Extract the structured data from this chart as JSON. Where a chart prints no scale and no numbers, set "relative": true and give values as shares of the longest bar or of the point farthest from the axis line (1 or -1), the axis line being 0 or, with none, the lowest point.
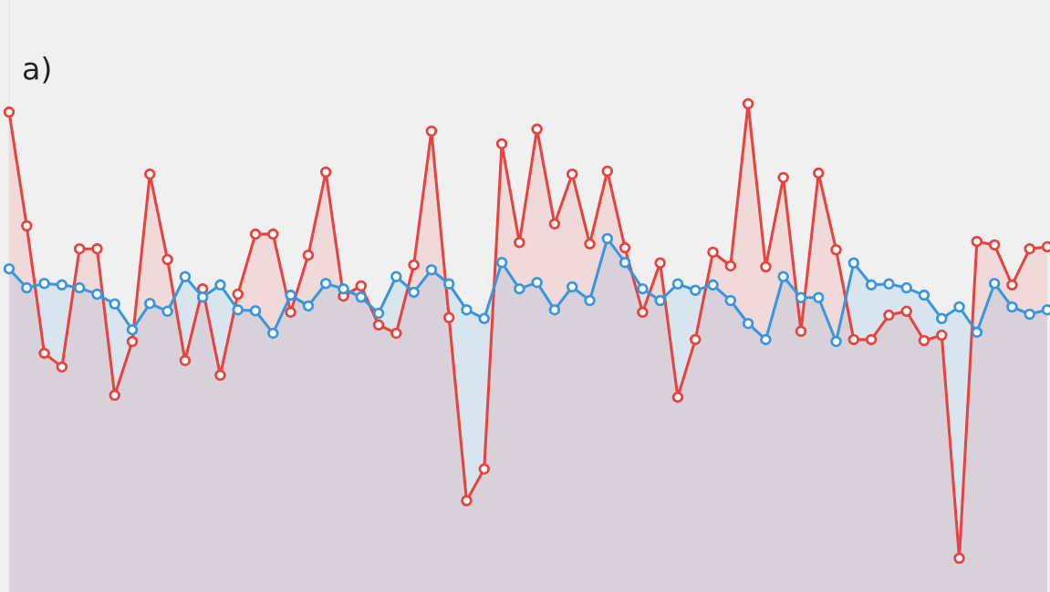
{
  "chart_data": {
    "type": "area",
    "title": "a)",
    "relative": true,
    "marker": "circle",
    "line_style": "solid",
    "categories": [
      null,
      null,
      null,
      null,
      null,
      null,
      null,
      null,
      null,
      null,
      null,
      null,
      null,
      null,
      null,
      null,
      null,
      null,
      null,
      null,
      null,
      null,
      null,
      null,
      null,
      null,
      null,
      null,
      null,
      null,
      null,
      null,
      null,
      null,
      null,
      null,
      null,
      null,
      null,
      null,
      null,
      null,
      null,
      null,
      null,
      null,
      null,
      null,
      null,
      null,
      null,
      null,
      null,
      null,
      null,
      null,
      null,
      null,
      null,
      null
    ],
    "series": [
      {
        "color": "#e8433e",
        "values": [
          0.983,
          0.75,
          0.489,
          0.461,
          0.703,
          0.703,
          0.403,
          0.513,
          0.856,
          0.681,
          0.474,
          0.621,
          0.444,
          0.61,
          0.733,
          0.733,
          0.573,
          0.69,
          0.86,
          0.606,
          0.627,
          0.547,
          0.53,
          0.67,
          0.944,
          0.562,
          0.187,
          0.252,
          0.918,
          0.716,
          0.948,
          0.754,
          0.856,
          0.713,
          0.862,
          0.705,
          0.573,
          0.674,
          0.399,
          0.517,
          0.696,
          0.668,
          1.0,
          0.666,
          0.849,
          0.534,
          0.858,
          0.701,
          0.517,
          0.517,
          0.567,
          0.575,
          0.515,
          0.526,
          0.069,
          0.718,
          0.711,
          0.629,
          0.703,
          0.707
        ]
      },
      {
        "color": "#3a97de",
        "values": [
          0.662,
          0.623,
          0.632,
          0.629,
          0.623,
          0.61,
          0.59,
          0.537,
          0.591,
          0.575,
          0.646,
          0.604,
          0.629,
          0.578,
          0.576,
          0.53,
          0.608,
          0.586,
          0.632,
          0.621,
          0.604,
          0.571,
          0.646,
          0.614,
          0.66,
          0.631,
          0.578,
          0.56,
          0.675,
          0.621,
          0.634,
          0.578,
          0.625,
          0.597,
          0.724,
          0.675,
          0.621,
          0.597,
          0.631,
          0.618,
          0.629,
          0.597,
          0.55,
          0.517,
          0.646,
          0.603,
          0.603,
          0.513,
          0.674,
          0.629,
          0.631,
          0.623,
          0.608,
          0.56,
          0.584,
          0.532,
          0.632,
          0.584,
          0.569,
          0.578
        ]
      }
    ]
  }
}
